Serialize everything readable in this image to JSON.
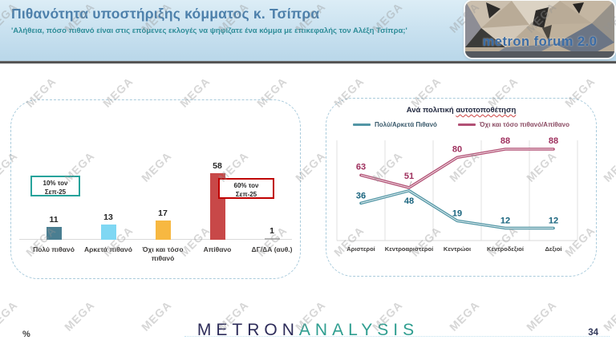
{
  "header": {
    "title": "Πιθανότητα υποστήριξης κόμματος κ. Τσίπρα",
    "subtitle": "'Αλήθεια, πόσο πιθανό είναι στις επόμενες εκλογές να ψηφίζατε ένα κόμμα με επικεφαλής τον Αλέξη Τσίπρα;'",
    "logo_text": "metron forum 2.0"
  },
  "watermark": {
    "text": "MEGA"
  },
  "footer": {
    "left_label": "%",
    "brand_part1": "METRON",
    "brand_part2": "ANALYSIS",
    "page_number": "34"
  },
  "chart_data": [
    {
      "type": "bar",
      "categories": [
        "Πολύ πιθανό",
        "Αρκετά πιθανό",
        "Όχι και τόσο πιθανό",
        "Απίθανο",
        "ΔΓ/ΔΑ (αυθ.)"
      ],
      "values": [
        11,
        13,
        17,
        58,
        1
      ],
      "bar_colors": [
        "#4a7e91",
        "#7fd7f3",
        "#f7b841",
        "#c84848",
        "#b3b3b3"
      ],
      "value_labels": true,
      "grid": false,
      "ylim": [
        0,
        70
      ],
      "annotations": [
        {
          "line1": "10% τον",
          "line2": "Σεπ-25",
          "border_color": "#27a39b"
        },
        {
          "line1": "60% τον",
          "line2": "Σεπ-25",
          "border_color": "#c00000"
        }
      ]
    },
    {
      "type": "line",
      "title": "Ανά πολιτική αυτοτοποθέτηση",
      "title_prefix": "Ανά πολιτική ",
      "title_underlined": "αυτοτοποθέτηση",
      "categories": [
        "Αριστεροί",
        "Κεντροαριστεροί",
        "Κεντρώοι",
        "Κεντροδεξιοί",
        "Δεξιοί"
      ],
      "series": [
        {
          "name": "Πολύ/Αρκετά Πιθανό",
          "color": "#5296a5",
          "label_color": "#19647e",
          "values": [
            36,
            48,
            19,
            12,
            12
          ]
        },
        {
          "name": "Όχι και τόσο πιθανό/Απίθανο",
          "color": "#b25175",
          "label_color": "#9e2f5d",
          "values": [
            63,
            51,
            80,
            88,
            88
          ]
        }
      ],
      "ylim": [
        0,
        100
      ],
      "grid": "vertical",
      "legend_position": "top"
    }
  ]
}
